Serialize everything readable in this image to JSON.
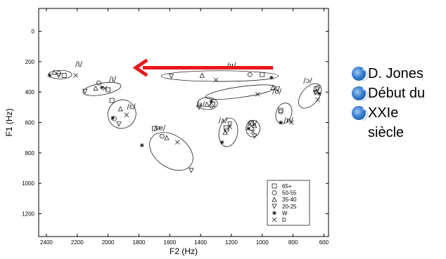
{
  "chart_data": {
    "type": "scatter",
    "title": "",
    "xlabel": "F2 (Hz)",
    "ylabel": "F1 (Hz)",
    "xlim": [
      2450,
      570
    ],
    "ylim": [
      -150,
      1350
    ],
    "x_ticks": [
      2400,
      2200,
      2000,
      1800,
      1600,
      1400,
      1200,
      1000,
      800,
      600
    ],
    "y_ticks": [
      0,
      200,
      400,
      600,
      800,
      1000,
      1200
    ],
    "x_reversed": true,
    "y_reversed": true,
    "grid": false,
    "legend_position": "bottom-right",
    "legend": [
      {
        "marker": "square",
        "label": "65+"
      },
      {
        "marker": "circle",
        "label": "50-55"
      },
      {
        "marker": "triangle-up",
        "label": "35-40"
      },
      {
        "marker": "triangle-down",
        "label": "20-25"
      },
      {
        "marker": "star",
        "label": "W"
      },
      {
        "marker": "x",
        "label": "D"
      }
    ],
    "vowel_labels": [
      {
        "text": "/i/",
        "x": 2190,
        "y": 230
      },
      {
        "text": "/ɪ/",
        "x": 1970,
        "y": 330
      },
      {
        "text": "/ɛ/",
        "x": 1850,
        "y": 510
      },
      {
        "text": "/æ/",
        "x": 1665,
        "y": 650
      },
      {
        "text": "/u/",
        "x": 1200,
        "y": 240
      },
      {
        "text": "/ʊ/",
        "x": 905,
        "y": 410
      },
      {
        "text": "/ɜ/",
        "x": 1400,
        "y": 495
      },
      {
        "text": "/ʌ/",
        "x": 1255,
        "y": 600
      },
      {
        "text": "/ɑ/",
        "x": 1065,
        "y": 620
      },
      {
        "text": "/ɒ/",
        "x": 830,
        "y": 600
      },
      {
        "text": "/ɔ/",
        "x": 705,
        "y": 340
      }
    ],
    "ellipses": [
      {
        "cx": 2310,
        "cy": 285,
        "rx": 75,
        "ry": 28,
        "angle": 0
      },
      {
        "cx": 2040,
        "cy": 380,
        "rx": 125,
        "ry": 38,
        "angle": -10
      },
      {
        "cx": 1910,
        "cy": 545,
        "rx": 90,
        "ry": 95,
        "angle": 30
      },
      {
        "cx": 1590,
        "cy": 790,
        "rx": 155,
        "ry": 105,
        "angle": 35
      },
      {
        "cx": 1275,
        "cy": 295,
        "rx": 380,
        "ry": 35,
        "angle": 0
      },
      {
        "cx": 1140,
        "cy": 400,
        "rx": 230,
        "ry": 35,
        "angle": -8
      },
      {
        "cx": 1355,
        "cy": 475,
        "rx": 65,
        "ry": 40,
        "angle": 0
      },
      {
        "cx": 1220,
        "cy": 665,
        "rx": 60,
        "ry": 95,
        "angle": 10
      },
      {
        "cx": 1060,
        "cy": 640,
        "rx": 45,
        "ry": 55,
        "angle": 0
      },
      {
        "cx": 860,
        "cy": 540,
        "rx": 50,
        "ry": 70,
        "angle": 20
      },
      {
        "cx": 690,
        "cy": 425,
        "rx": 55,
        "ry": 95,
        "angle": 40
      }
    ],
    "series": [
      {
        "name": "65+",
        "marker": "square",
        "points": [
          [
            2285,
            290
          ],
          [
            2000,
            385
          ],
          [
            1975,
            455
          ],
          [
            1700,
            640
          ],
          [
            1235,
            635
          ],
          [
            1070,
            605
          ],
          [
            1000,
            285
          ],
          [
            880,
            520
          ],
          [
            650,
            380
          ],
          [
            1320,
            480
          ]
        ]
      },
      {
        "name": "50-55",
        "marker": "circle",
        "points": [
          [
            2320,
            275
          ],
          [
            2060,
            340
          ],
          [
            1960,
            575
          ],
          [
            1650,
            690
          ],
          [
            1230,
            650
          ],
          [
            1070,
            640
          ],
          [
            1080,
            285
          ],
          [
            880,
            530
          ],
          [
            640,
            370
          ],
          [
            1330,
            490
          ]
        ]
      },
      {
        "name": "35-40",
        "marker": "triangle-up",
        "points": [
          [
            2350,
            270
          ],
          [
            2080,
            375
          ],
          [
            1920,
            510
          ],
          [
            1620,
            700
          ],
          [
            1240,
            665
          ],
          [
            1050,
            620
          ],
          [
            1390,
            290
          ],
          [
            930,
            370
          ],
          [
            650,
            395
          ],
          [
            1360,
            480
          ]
        ]
      },
      {
        "name": "20-25",
        "marker": "triangle-down",
        "points": [
          [
            2320,
            290
          ],
          [
            2150,
            395
          ],
          [
            1930,
            610
          ],
          [
            1460,
            915
          ],
          [
            1210,
            610
          ],
          [
            1050,
            690
          ],
          [
            1590,
            295
          ],
          [
            900,
            380
          ],
          [
            655,
            405
          ],
          [
            1410,
            500
          ]
        ]
      },
      {
        "name": "W",
        "marker": "star",
        "points": [
          [
            2380,
            290
          ],
          [
            2040,
            370
          ],
          [
            1970,
            570
          ],
          [
            1780,
            750
          ],
          [
            1260,
            730
          ],
          [
            1090,
            640
          ],
          [
            940,
            305
          ],
          [
            880,
            600
          ],
          [
            630,
            410
          ],
          [
            1330,
            460
          ]
        ]
      },
      {
        "name": "D",
        "marker": "x",
        "points": [
          [
            2210,
            290
          ],
          [
            2020,
            375
          ],
          [
            1880,
            550
          ],
          [
            1550,
            730
          ],
          [
            1210,
            630
          ],
          [
            1060,
            660
          ],
          [
            1300,
            320
          ],
          [
            1030,
            415
          ],
          [
            810,
            600
          ],
          [
            640,
            450
          ]
        ]
      }
    ],
    "arrow": {
      "from": [
        930,
        240
      ],
      "to": [
        1820,
        240
      ],
      "color": "#e8161b"
    }
  },
  "side_panel": {
    "items": [
      {
        "label": "D. Jones",
        "cont": ""
      },
      {
        "label": "Début du",
        "cont": ""
      },
      {
        "label": "XXIe",
        "cont": "siècle"
      }
    ]
  }
}
